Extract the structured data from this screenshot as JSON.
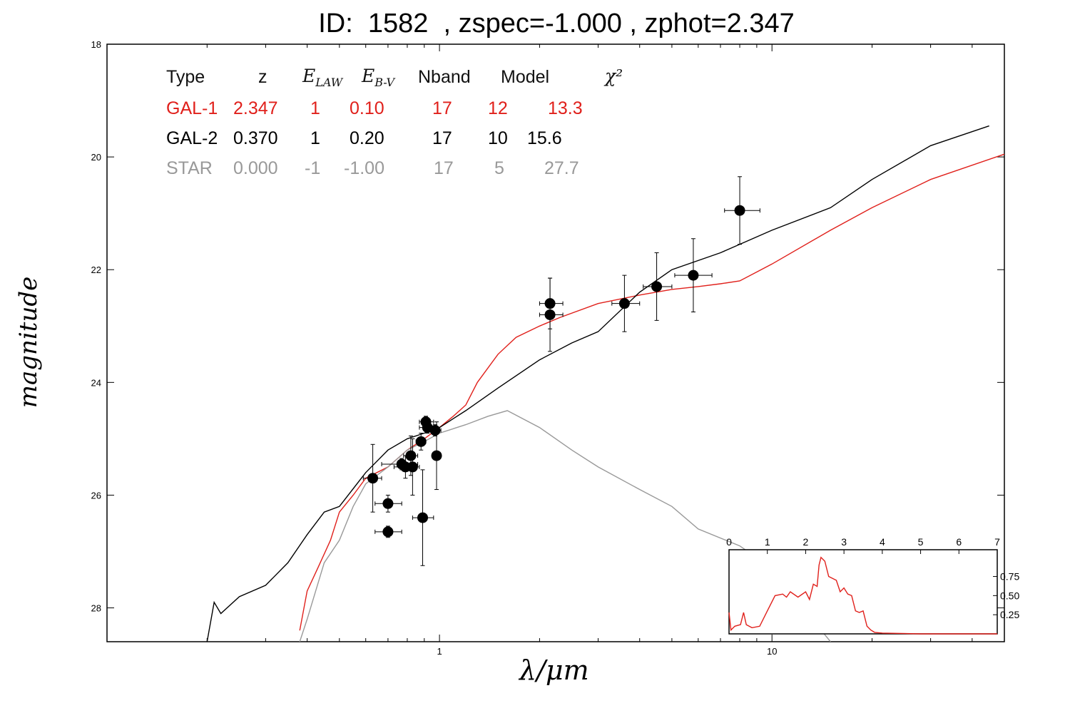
{
  "title": "ID:  1582  , zspec=-1.000 , zphot=2.347",
  "colors": {
    "gal1": "#e0201b",
    "gal2": "#000000",
    "star": "#999999",
    "points": "#000000"
  },
  "table": {
    "headers": [
      "Type",
      "z",
      "E_LAW",
      "E_B-V",
      "Nband",
      "Model",
      "χ²"
    ],
    "rows": [
      {
        "type": "GAL-1",
        "z": "2.347",
        "elaw": "1",
        "ebv": "0.10",
        "nband": "17",
        "model": "12",
        "chi2": "13.3",
        "color": "#e0201b"
      },
      {
        "type": "GAL-2",
        "z": "0.370",
        "elaw": "1",
        "ebv": "0.20",
        "nband": "17",
        "model": "10",
        "chi2": "15.6",
        "color": "#000000"
      },
      {
        "type": "STAR",
        "z": "0.000",
        "elaw": "-1",
        "ebv": "-1.00",
        "nband": "17",
        "model": "5",
        "chi2": "27.7",
        "color": "#999999"
      }
    ]
  },
  "chart_data": [
    {
      "type": "line",
      "xlabel": "λ/μm",
      "ylabel": "magnitude",
      "xscale": "log",
      "xlim": [
        0.1,
        50
      ],
      "ylim": [
        28.6,
        18.0
      ],
      "yticks": [
        18,
        20,
        22,
        24,
        26,
        28
      ],
      "xticks": [
        1,
        10
      ],
      "grid": false,
      "series": [
        {
          "name": "GAL-1",
          "color": "#e0201b",
          "points": [
            [
              0.38,
              28.4
            ],
            [
              0.4,
              27.7
            ],
            [
              0.43,
              27.3
            ],
            [
              0.47,
              26.8
            ],
            [
              0.5,
              26.3
            ],
            [
              0.55,
              26.0
            ],
            [
              0.6,
              25.7
            ],
            [
              0.7,
              25.5
            ],
            [
              0.8,
              25.2
            ],
            [
              0.9,
              25.0
            ],
            [
              1.0,
              24.8
            ],
            [
              1.1,
              24.6
            ],
            [
              1.2,
              24.4
            ],
            [
              1.3,
              24.0
            ],
            [
              1.5,
              23.5
            ],
            [
              1.7,
              23.2
            ],
            [
              2.0,
              23.0
            ],
            [
              2.3,
              22.85
            ],
            [
              3.0,
              22.6
            ],
            [
              4.0,
              22.45
            ],
            [
              5.0,
              22.35
            ],
            [
              6.0,
              22.3
            ],
            [
              7.0,
              22.25
            ],
            [
              8.0,
              22.2
            ],
            [
              10.0,
              21.9
            ],
            [
              15.0,
              21.3
            ],
            [
              20.0,
              20.9
            ],
            [
              30.0,
              20.4
            ],
            [
              50.0,
              19.95
            ]
          ]
        },
        {
          "name": "GAL-2",
          "color": "#000000",
          "points": [
            [
              0.2,
              28.6
            ],
            [
              0.21,
              27.9
            ],
            [
              0.22,
              28.1
            ],
            [
              0.25,
              27.8
            ],
            [
              0.3,
              27.6
            ],
            [
              0.35,
              27.2
            ],
            [
              0.4,
              26.7
            ],
            [
              0.45,
              26.3
            ],
            [
              0.5,
              26.2
            ],
            [
              0.6,
              25.6
            ],
            [
              0.7,
              25.2
            ],
            [
              0.8,
              25.0
            ],
            [
              0.9,
              24.9
            ],
            [
              1.0,
              24.8
            ],
            [
              1.2,
              24.5
            ],
            [
              1.5,
              24.1
            ],
            [
              2.0,
              23.6
            ],
            [
              2.5,
              23.3
            ],
            [
              3.0,
              23.1
            ],
            [
              4.0,
              22.4
            ],
            [
              5.0,
              22.0
            ],
            [
              7.0,
              21.7
            ],
            [
              10.0,
              21.3
            ],
            [
              15.0,
              20.9
            ],
            [
              20.0,
              20.4
            ],
            [
              30.0,
              19.8
            ],
            [
              45.0,
              19.45
            ]
          ]
        },
        {
          "name": "STAR",
          "color": "#999999",
          "points": [
            [
              0.38,
              28.6
            ],
            [
              0.4,
              28.2
            ],
            [
              0.45,
              27.2
            ],
            [
              0.5,
              26.8
            ],
            [
              0.55,
              26.2
            ],
            [
              0.6,
              25.8
            ],
            [
              0.7,
              25.5
            ],
            [
              0.8,
              25.2
            ],
            [
              0.9,
              25.05
            ],
            [
              1.0,
              24.9
            ],
            [
              1.2,
              24.75
            ],
            [
              1.4,
              24.6
            ],
            [
              1.6,
              24.5
            ],
            [
              2.0,
              24.8
            ],
            [
              2.5,
              25.2
            ],
            [
              3.0,
              25.5
            ],
            [
              4.0,
              25.9
            ],
            [
              5.0,
              26.2
            ],
            [
              6.0,
              26.6
            ],
            [
              8.0,
              26.9
            ],
            [
              10.0,
              27.3
            ],
            [
              12.0,
              27.9
            ],
            [
              15.0,
              28.6
            ]
          ]
        }
      ],
      "measurements": [
        {
          "x": 0.63,
          "y": 25.7,
          "xerr": [
            0.59,
            0.67
          ],
          "yerr": 0.6
        },
        {
          "x": 0.7,
          "y": 26.15,
          "xerr": [
            0.64,
            0.77
          ],
          "yerr": 0.15
        },
        {
          "x": 0.7,
          "y": 26.65,
          "xerr": [
            0.64,
            0.77
          ],
          "yerr": 0.1
        },
        {
          "x": 0.77,
          "y": 25.45,
          "xerr": [
            0.67,
            0.86
          ],
          "yerr": 0.1
        },
        {
          "x": 0.79,
          "y": 25.5,
          "xerr": [
            0.73,
            0.84
          ],
          "yerr": 0.2
        },
        {
          "x": 0.82,
          "y": 25.3,
          "xerr": [
            0.78,
            0.86
          ],
          "yerr": 0.35
        },
        {
          "x": 0.83,
          "y": 25.5,
          "xerr": [
            0.79,
            0.87
          ],
          "yerr": 0.5
        },
        {
          "x": 0.88,
          "y": 25.05,
          "xerr": [
            0.85,
            0.91
          ],
          "yerr": 0.15
        },
        {
          "x": 0.89,
          "y": 26.4,
          "xerr": [
            0.83,
            0.96
          ],
          "yerr": 0.85
        },
        {
          "x": 0.91,
          "y": 24.7,
          "xerr": [
            0.87,
            0.96
          ],
          "yerr": 0.1
        },
        {
          "x": 0.92,
          "y": 24.8,
          "xerr": [
            0.87,
            0.97
          ],
          "yerr": 0.1
        },
        {
          "x": 0.97,
          "y": 24.85,
          "xerr": [
            0.93,
            1.01
          ],
          "yerr": 0.1
        },
        {
          "x": 0.98,
          "y": 25.3,
          "xerr": [
            0.96,
            1.01
          ],
          "yerr": 0.6
        },
        {
          "x": 2.15,
          "y": 22.6,
          "xerr": [
            2.0,
            2.35
          ],
          "yerr": 0.45
        },
        {
          "x": 2.15,
          "y": 22.8,
          "xerr": [
            2.0,
            2.35
          ],
          "yerr": 0.65
        },
        {
          "x": 3.6,
          "y": 22.6,
          "xerr": [
            3.3,
            4.0
          ],
          "yerr": 0.5
        },
        {
          "x": 4.5,
          "y": 22.3,
          "xerr": [
            4.1,
            5.0
          ],
          "yerr": 0.6
        },
        {
          "x": 5.8,
          "y": 22.1,
          "xerr": [
            5.1,
            6.6
          ],
          "yerr": 0.65
        },
        {
          "x": 8.0,
          "y": 20.95,
          "xerr": [
            7.2,
            9.2
          ],
          "yerr": 0.6
        }
      ]
    },
    {
      "type": "line",
      "name": "inset-pdz",
      "xlim": [
        0,
        7
      ],
      "ylim": [
        0,
        1.1
      ],
      "xticks": [
        0,
        1,
        2,
        3,
        4,
        5,
        6,
        7
      ],
      "yticks": [
        0.25,
        0.5,
        0.75
      ],
      "series": [
        {
          "color": "#e0201b",
          "points": [
            [
              0.0,
              0.28
            ],
            [
              0.05,
              0.05
            ],
            [
              0.15,
              0.1
            ],
            [
              0.3,
              0.12
            ],
            [
              0.38,
              0.28
            ],
            [
              0.45,
              0.12
            ],
            [
              0.6,
              0.08
            ],
            [
              0.8,
              0.1
            ],
            [
              1.0,
              0.3
            ],
            [
              1.2,
              0.5
            ],
            [
              1.4,
              0.52
            ],
            [
              1.5,
              0.48
            ],
            [
              1.6,
              0.55
            ],
            [
              1.8,
              0.48
            ],
            [
              2.0,
              0.55
            ],
            [
              2.1,
              0.45
            ],
            [
              2.2,
              0.65
            ],
            [
              2.3,
              0.62
            ],
            [
              2.35,
              0.9
            ],
            [
              2.4,
              1.0
            ],
            [
              2.5,
              0.95
            ],
            [
              2.6,
              0.75
            ],
            [
              2.8,
              0.7
            ],
            [
              2.9,
              0.55
            ],
            [
              3.0,
              0.6
            ],
            [
              3.1,
              0.52
            ],
            [
              3.2,
              0.5
            ],
            [
              3.3,
              0.3
            ],
            [
              3.4,
              0.28
            ],
            [
              3.5,
              0.3
            ],
            [
              3.6,
              0.1
            ],
            [
              3.7,
              0.05
            ],
            [
              3.8,
              0.02
            ],
            [
              4.0,
              0.01
            ],
            [
              5.0,
              0.0
            ],
            [
              7.0,
              0.0
            ]
          ]
        }
      ]
    }
  ]
}
